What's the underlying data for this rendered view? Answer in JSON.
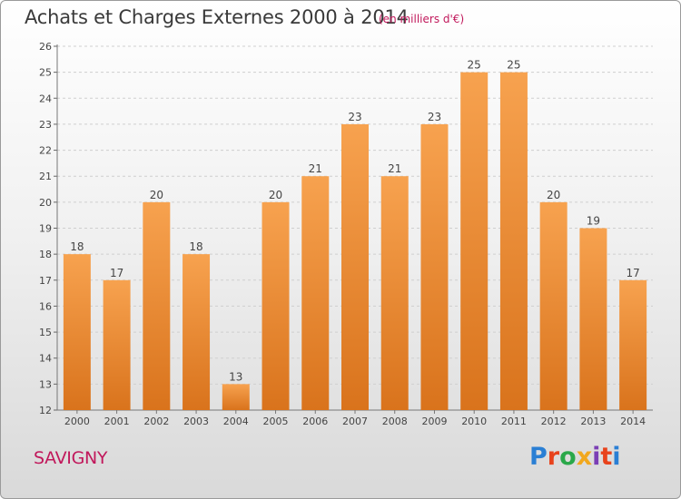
{
  "header": {
    "title": "Achats et Charges Externes 2000 à 2014",
    "subtitle": "(en milliers d'€)"
  },
  "footer": {
    "commune": "SAVIGNY",
    "logo_text": "Proxiti"
  },
  "colors": {
    "bar_top": "#f7a24f",
    "bar_bottom": "#d9731c",
    "grid": "#cfcfcf",
    "title": "#3a3a3a",
    "accent": "#c1185b"
  },
  "chart_data": {
    "type": "bar",
    "categories": [
      "2000",
      "2001",
      "2002",
      "2003",
      "2004",
      "2005",
      "2006",
      "2007",
      "2008",
      "2009",
      "2010",
      "2011",
      "2012",
      "2013",
      "2014"
    ],
    "values": [
      18,
      17,
      20,
      18,
      13,
      20,
      21,
      23,
      21,
      23,
      25,
      25,
      20,
      19,
      17
    ],
    "data_labels": [
      "18",
      "17",
      "20",
      "18",
      "13",
      "20",
      "21",
      "23",
      "21",
      "23",
      "25",
      "25",
      "20",
      "19",
      "17"
    ],
    "y_ticks": [
      "12",
      "13",
      "14",
      "15",
      "16",
      "17",
      "18",
      "19",
      "20",
      "21",
      "22",
      "23",
      "24",
      "25",
      "26"
    ],
    "ylim": [
      12,
      26
    ],
    "grid": true,
    "title": "Achats et Charges Externes 2000 à 2014",
    "xlabel": "",
    "ylabel": ""
  }
}
